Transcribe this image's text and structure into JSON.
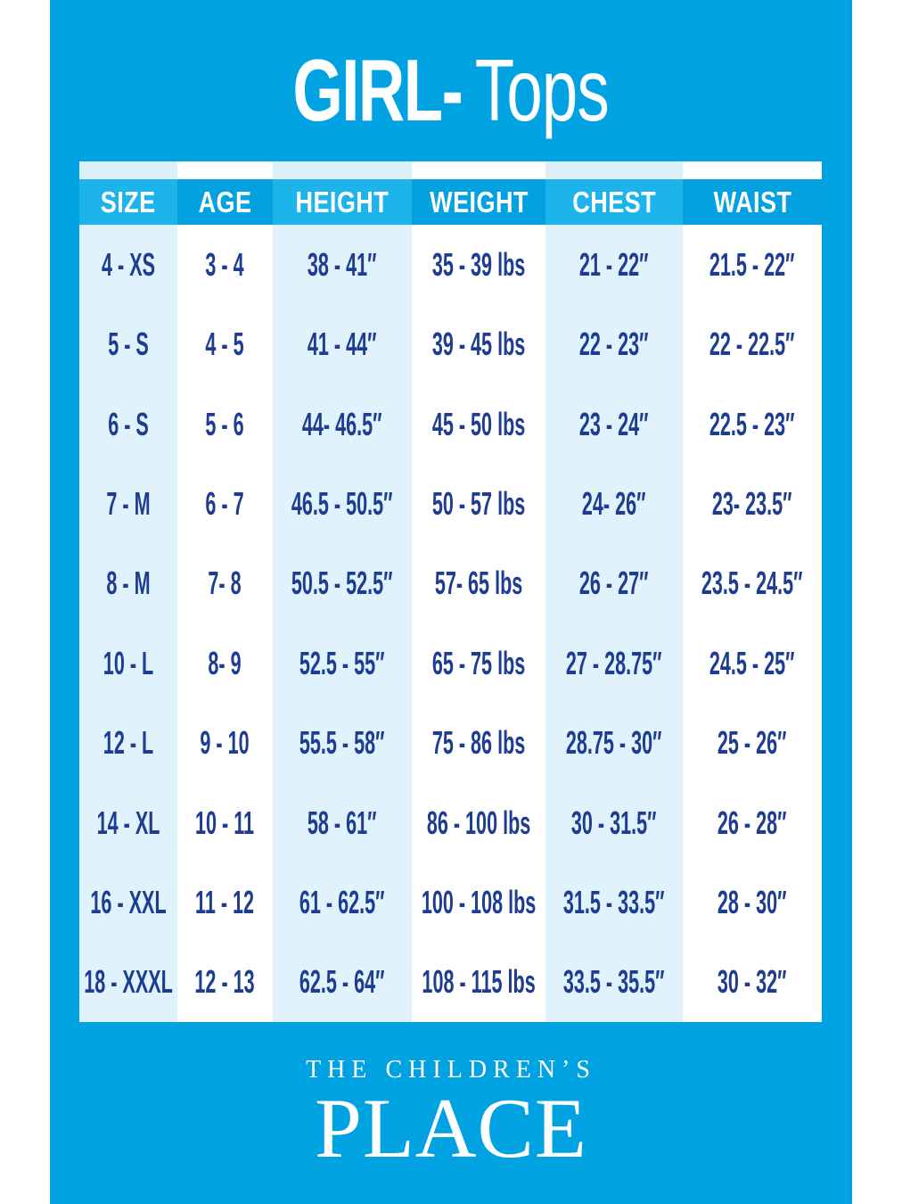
{
  "title": {
    "bold": "GIRL-",
    "light": "Tops"
  },
  "table": {
    "headers": [
      "SIZE",
      "AGE",
      "HEIGHT",
      "WEIGHT",
      "CHEST",
      "WAIST"
    ],
    "rows": [
      [
        "4 - XS",
        "3 - 4",
        "38 - 41″",
        "35 - 39 lbs",
        "21 - 22″",
        "21.5 - 22″"
      ],
      [
        "5 - S",
        "4 - 5",
        "41 - 44″",
        "39 - 45 lbs",
        "22 - 23″",
        "22 - 22.5″"
      ],
      [
        "6 - S",
        "5 - 6",
        "44- 46.5″",
        "45 - 50 lbs",
        "23 - 24″",
        "22.5 - 23″"
      ],
      [
        "7 - M",
        "6 - 7",
        "46.5 - 50.5″",
        "50 - 57 lbs",
        "24- 26″",
        "23- 23.5″"
      ],
      [
        "8 - M",
        "7- 8",
        "50.5 - 52.5″",
        "57- 65 lbs",
        "26 - 27″",
        "23.5 - 24.5″"
      ],
      [
        "10 - L",
        "8- 9",
        "52.5 - 55″",
        "65 - 75 lbs",
        "27 - 28.75″",
        "24.5 - 25″"
      ],
      [
        "12 - L",
        "9 - 10",
        "55.5 - 58″",
        "75 - 86 lbs",
        "28.75 - 30″",
        "25 - 26″"
      ],
      [
        "14 - XL",
        "10 - 11",
        "58 - 61″",
        "86 - 100 lbs",
        "30 - 31.5″",
        "26 - 28″"
      ],
      [
        "16 - XXL",
        "11 - 12",
        "61 - 62.5″",
        "100 - 108 lbs",
        "31.5 - 33.5″",
        "28 - 30″"
      ],
      [
        "18 - XXXL",
        "12 - 13",
        "62.5 - 64″",
        "108 - 115 lbs",
        "33.5 - 35.5″",
        "30 - 32″"
      ]
    ]
  },
  "brand": {
    "line1": "THE CHILDREN’S",
    "line2": "PLACE"
  },
  "colors": {
    "background_blue": "#00a2e1",
    "header_light_blue": "#1cb4ea",
    "header_dark_blue": "#04a1e0",
    "column_light_blue": "#e0f2fb",
    "column_white": "#ffffff",
    "data_text_navy": "#1e3d92",
    "text_white": "#ffffff"
  }
}
